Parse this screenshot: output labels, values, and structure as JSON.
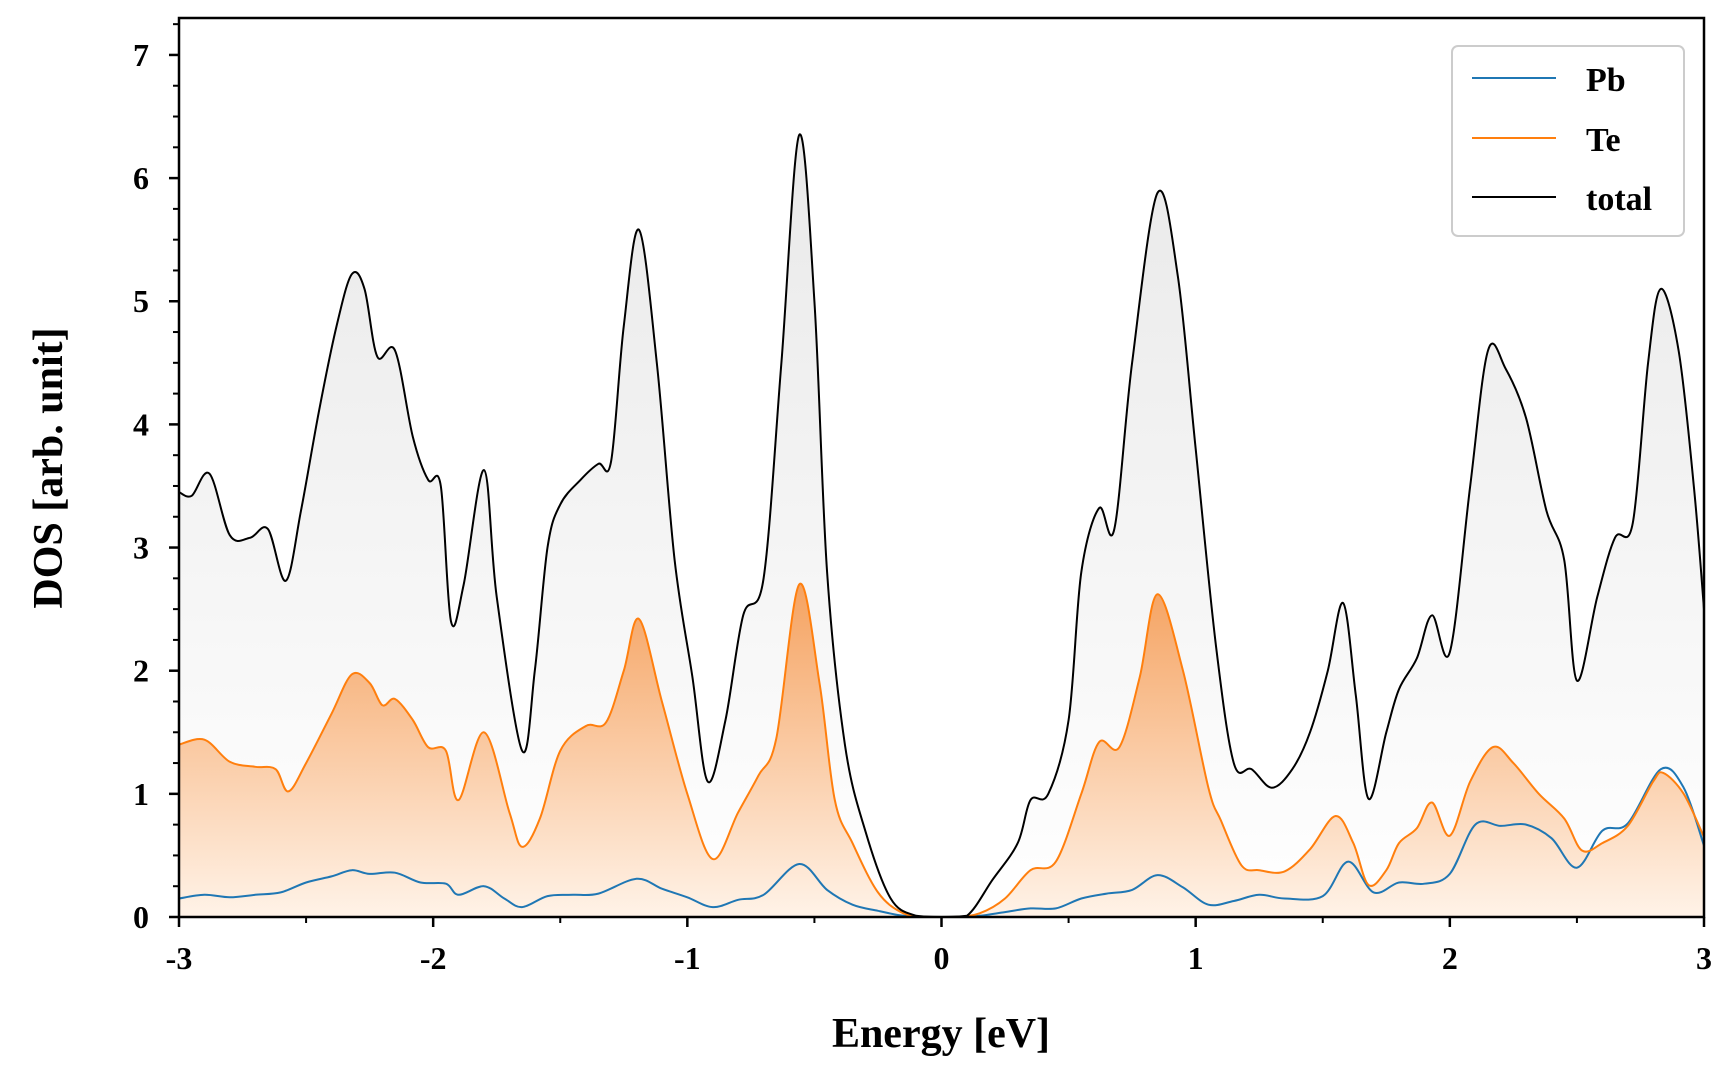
{
  "chart_data": {
    "type": "area",
    "xlabel": "Energy [eV]",
    "ylabel": "DOS [arb. unit]",
    "xlim": [
      -3,
      3
    ],
    "ylim": [
      0,
      7.3
    ],
    "xticks": [
      "-3",
      "-2",
      "-1",
      "0",
      "1",
      "2",
      "3"
    ],
    "yticks": [
      "0",
      "1",
      "2",
      "3",
      "4",
      "5",
      "6",
      "7"
    ],
    "legend_position": "top-right",
    "grid": false,
    "series": [
      {
        "name": "Pb",
        "color": "#1f77b4",
        "fill": false,
        "points": [
          [
            -3.0,
            0.15
          ],
          [
            -2.9,
            0.18
          ],
          [
            -2.8,
            0.16
          ],
          [
            -2.7,
            0.18
          ],
          [
            -2.6,
            0.2
          ],
          [
            -2.5,
            0.28
          ],
          [
            -2.4,
            0.33
          ],
          [
            -2.32,
            0.38
          ],
          [
            -2.25,
            0.35
          ],
          [
            -2.15,
            0.36
          ],
          [
            -2.05,
            0.28
          ],
          [
            -1.95,
            0.27
          ],
          [
            -1.9,
            0.18
          ],
          [
            -1.8,
            0.25
          ],
          [
            -1.72,
            0.15
          ],
          [
            -1.65,
            0.08
          ],
          [
            -1.55,
            0.17
          ],
          [
            -1.45,
            0.18
          ],
          [
            -1.35,
            0.19
          ],
          [
            -1.2,
            0.31
          ],
          [
            -1.1,
            0.23
          ],
          [
            -1.0,
            0.16
          ],
          [
            -0.9,
            0.08
          ],
          [
            -0.8,
            0.14
          ],
          [
            -0.7,
            0.18
          ],
          [
            -0.56,
            0.43
          ],
          [
            -0.45,
            0.22
          ],
          [
            -0.35,
            0.1
          ],
          [
            -0.25,
            0.05
          ],
          [
            -0.15,
            0.01
          ],
          [
            -0.05,
            0.0
          ],
          [
            0.05,
            0.0
          ],
          [
            0.15,
            0.01
          ],
          [
            0.25,
            0.04
          ],
          [
            0.35,
            0.07
          ],
          [
            0.45,
            0.07
          ],
          [
            0.55,
            0.15
          ],
          [
            0.65,
            0.19
          ],
          [
            0.75,
            0.22
          ],
          [
            0.85,
            0.34
          ],
          [
            0.95,
            0.24
          ],
          [
            1.05,
            0.1
          ],
          [
            1.15,
            0.13
          ],
          [
            1.25,
            0.18
          ],
          [
            1.35,
            0.15
          ],
          [
            1.5,
            0.17
          ],
          [
            1.6,
            0.45
          ],
          [
            1.7,
            0.2
          ],
          [
            1.8,
            0.28
          ],
          [
            1.9,
            0.27
          ],
          [
            2.0,
            0.35
          ],
          [
            2.1,
            0.75
          ],
          [
            2.2,
            0.74
          ],
          [
            2.3,
            0.75
          ],
          [
            2.4,
            0.64
          ],
          [
            2.5,
            0.4
          ],
          [
            2.6,
            0.7
          ],
          [
            2.7,
            0.76
          ],
          [
            2.83,
            1.2
          ],
          [
            2.92,
            1.05
          ],
          [
            3.0,
            0.58
          ]
        ]
      },
      {
        "name": "Te",
        "color": "#ff7f0e",
        "fill": true,
        "points": [
          [
            -3.0,
            1.4
          ],
          [
            -2.9,
            1.44
          ],
          [
            -2.8,
            1.26
          ],
          [
            -2.7,
            1.22
          ],
          [
            -2.62,
            1.2
          ],
          [
            -2.57,
            1.02
          ],
          [
            -2.5,
            1.25
          ],
          [
            -2.4,
            1.65
          ],
          [
            -2.32,
            1.97
          ],
          [
            -2.25,
            1.9
          ],
          [
            -2.2,
            1.72
          ],
          [
            -2.15,
            1.77
          ],
          [
            -2.08,
            1.6
          ],
          [
            -2.02,
            1.38
          ],
          [
            -1.95,
            1.35
          ],
          [
            -1.9,
            0.95
          ],
          [
            -1.8,
            1.5
          ],
          [
            -1.7,
            0.85
          ],
          [
            -1.65,
            0.57
          ],
          [
            -1.58,
            0.8
          ],
          [
            -1.5,
            1.35
          ],
          [
            -1.4,
            1.55
          ],
          [
            -1.32,
            1.58
          ],
          [
            -1.25,
            2.0
          ],
          [
            -1.19,
            2.42
          ],
          [
            -1.1,
            1.75
          ],
          [
            -1.0,
            1.0
          ],
          [
            -0.9,
            0.47
          ],
          [
            -0.8,
            0.85
          ],
          [
            -0.72,
            1.15
          ],
          [
            -0.65,
            1.45
          ],
          [
            -0.56,
            2.7
          ],
          [
            -0.48,
            1.9
          ],
          [
            -0.42,
            0.95
          ],
          [
            -0.35,
            0.6
          ],
          [
            -0.25,
            0.2
          ],
          [
            -0.15,
            0.03
          ],
          [
            -0.05,
            0.0
          ],
          [
            0.05,
            0.0
          ],
          [
            0.15,
            0.03
          ],
          [
            0.25,
            0.15
          ],
          [
            0.35,
            0.38
          ],
          [
            0.45,
            0.45
          ],
          [
            0.55,
            1.0
          ],
          [
            0.62,
            1.42
          ],
          [
            0.7,
            1.38
          ],
          [
            0.78,
            1.95
          ],
          [
            0.85,
            2.62
          ],
          [
            0.95,
            2.0
          ],
          [
            1.05,
            1.05
          ],
          [
            1.1,
            0.78
          ],
          [
            1.18,
            0.42
          ],
          [
            1.25,
            0.38
          ],
          [
            1.35,
            0.37
          ],
          [
            1.45,
            0.55
          ],
          [
            1.55,
            0.82
          ],
          [
            1.62,
            0.6
          ],
          [
            1.68,
            0.26
          ],
          [
            1.75,
            0.38
          ],
          [
            1.8,
            0.6
          ],
          [
            1.87,
            0.72
          ],
          [
            1.93,
            0.93
          ],
          [
            2.0,
            0.66
          ],
          [
            2.08,
            1.1
          ],
          [
            2.17,
            1.38
          ],
          [
            2.25,
            1.25
          ],
          [
            2.35,
            1.0
          ],
          [
            2.45,
            0.8
          ],
          [
            2.52,
            0.54
          ],
          [
            2.6,
            0.6
          ],
          [
            2.7,
            0.74
          ],
          [
            2.8,
            1.1
          ],
          [
            2.84,
            1.17
          ],
          [
            2.92,
            1.0
          ],
          [
            3.0,
            0.65
          ]
        ]
      },
      {
        "name": "total",
        "color": "#000000",
        "fill": true,
        "points": [
          [
            -3.0,
            3.45
          ],
          [
            -2.95,
            3.42
          ],
          [
            -2.88,
            3.6
          ],
          [
            -2.8,
            3.1
          ],
          [
            -2.72,
            3.08
          ],
          [
            -2.65,
            3.15
          ],
          [
            -2.58,
            2.73
          ],
          [
            -2.52,
            3.3
          ],
          [
            -2.45,
            4.1
          ],
          [
            -2.38,
            4.8
          ],
          [
            -2.32,
            5.22
          ],
          [
            -2.27,
            5.1
          ],
          [
            -2.22,
            4.55
          ],
          [
            -2.15,
            4.6
          ],
          [
            -2.08,
            3.9
          ],
          [
            -2.02,
            3.55
          ],
          [
            -1.97,
            3.5
          ],
          [
            -1.93,
            2.4
          ],
          [
            -1.88,
            2.7
          ],
          [
            -1.8,
            3.63
          ],
          [
            -1.75,
            2.6
          ],
          [
            -1.65,
            1.35
          ],
          [
            -1.6,
            2.0
          ],
          [
            -1.55,
            3.0
          ],
          [
            -1.5,
            3.35
          ],
          [
            -1.42,
            3.55
          ],
          [
            -1.35,
            3.68
          ],
          [
            -1.3,
            3.7
          ],
          [
            -1.25,
            4.8
          ],
          [
            -1.19,
            5.58
          ],
          [
            -1.12,
            4.5
          ],
          [
            -1.05,
            2.9
          ],
          [
            -0.98,
            1.95
          ],
          [
            -0.92,
            1.1
          ],
          [
            -0.85,
            1.6
          ],
          [
            -0.78,
            2.45
          ],
          [
            -0.7,
            2.75
          ],
          [
            -0.63,
            4.5
          ],
          [
            -0.56,
            6.35
          ],
          [
            -0.5,
            5.0
          ],
          [
            -0.45,
            2.8
          ],
          [
            -0.38,
            1.4
          ],
          [
            -0.3,
            0.7
          ],
          [
            -0.2,
            0.15
          ],
          [
            -0.1,
            0.01
          ],
          [
            0.0,
            0.0
          ],
          [
            0.1,
            0.01
          ],
          [
            0.2,
            0.3
          ],
          [
            0.3,
            0.6
          ],
          [
            0.35,
            0.95
          ],
          [
            0.42,
            1.0
          ],
          [
            0.5,
            1.6
          ],
          [
            0.55,
            2.8
          ],
          [
            0.62,
            3.32
          ],
          [
            0.68,
            3.15
          ],
          [
            0.75,
            4.5
          ],
          [
            0.85,
            5.88
          ],
          [
            0.93,
            5.2
          ],
          [
            1.0,
            3.8
          ],
          [
            1.08,
            2.2
          ],
          [
            1.15,
            1.25
          ],
          [
            1.22,
            1.2
          ],
          [
            1.3,
            1.05
          ],
          [
            1.38,
            1.2
          ],
          [
            1.45,
            1.5
          ],
          [
            1.52,
            2.0
          ],
          [
            1.58,
            2.55
          ],
          [
            1.63,
            1.8
          ],
          [
            1.68,
            0.96
          ],
          [
            1.75,
            1.5
          ],
          [
            1.8,
            1.85
          ],
          [
            1.87,
            2.1
          ],
          [
            1.93,
            2.45
          ],
          [
            2.0,
            2.15
          ],
          [
            2.08,
            3.5
          ],
          [
            2.15,
            4.6
          ],
          [
            2.22,
            4.45
          ],
          [
            2.3,
            4.05
          ],
          [
            2.38,
            3.3
          ],
          [
            2.45,
            2.9
          ],
          [
            2.5,
            1.92
          ],
          [
            2.58,
            2.6
          ],
          [
            2.65,
            3.08
          ],
          [
            2.72,
            3.2
          ],
          [
            2.78,
            4.5
          ],
          [
            2.83,
            5.1
          ],
          [
            2.9,
            4.6
          ],
          [
            2.96,
            3.5
          ],
          [
            3.0,
            2.5
          ]
        ]
      }
    ]
  }
}
